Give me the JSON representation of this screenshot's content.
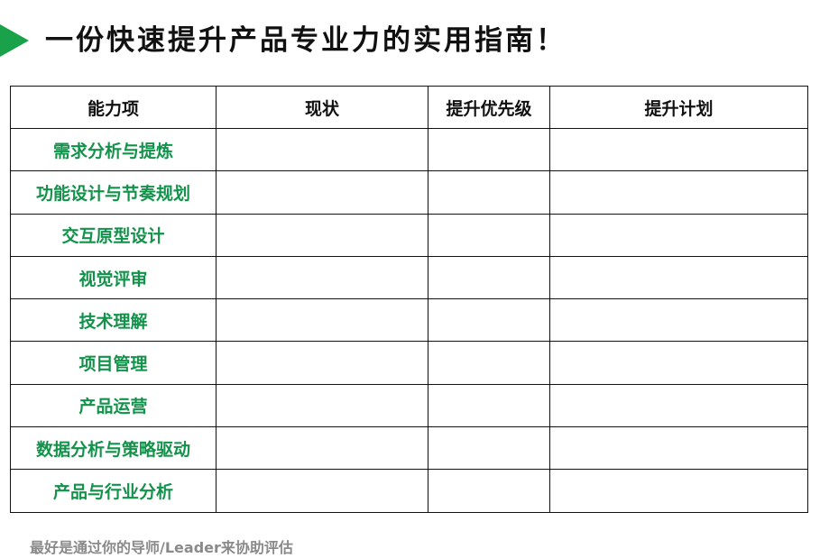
{
  "title": "一份快速提升产品专业力的实用指南！",
  "accent_color": "#1aa24a",
  "table": {
    "headers": [
      "能力项",
      "现状",
      "提升优先级",
      "提升计划"
    ],
    "rows": [
      "需求分析与提炼",
      "功能设计与节奏规划",
      "交互原型设计",
      "视觉评审",
      "技术理解",
      "项目管理",
      "产品运营",
      "数据分析与策略驱动",
      "产品与行业分析"
    ]
  },
  "footer": "最好是通过你的导师/Leader来协助评估"
}
